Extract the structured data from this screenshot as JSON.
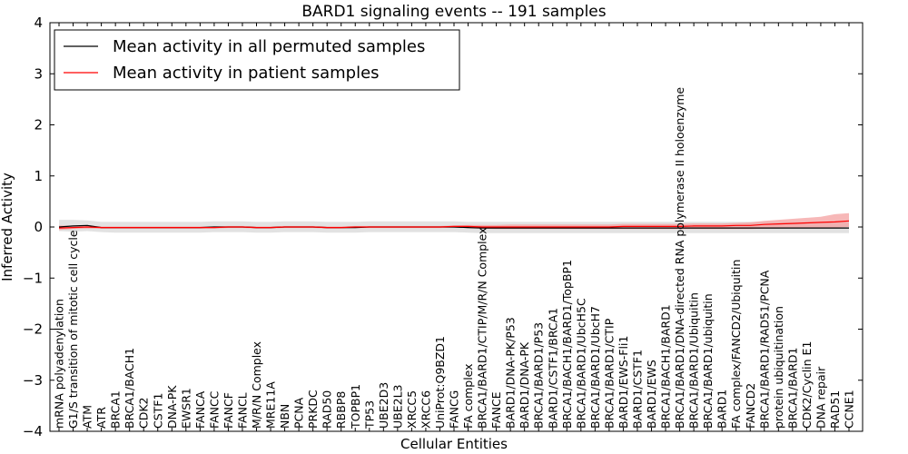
{
  "chart_data": {
    "type": "line",
    "title": "BARD1 signaling events -- 191 samples",
    "xlabel": "Cellular Entities",
    "ylabel": "Inferred Activity",
    "ylim": [
      -4,
      4
    ],
    "yticks": [
      -4,
      -3,
      -2,
      -1,
      0,
      1,
      2,
      3,
      4
    ],
    "yticklabels": [
      "−4",
      "−3",
      "−2",
      "−1",
      "0",
      "1",
      "2",
      "3",
      "4"
    ],
    "legend_position": "top-left",
    "categories": [
      "mRNA polyadenylation",
      "G1/S transition of mitotic cell cycle",
      "ATM",
      "ATR",
      "BRCA1",
      "BRCA1/BACH1",
      "CDK2",
      "CSTF1",
      "DNA-PK",
      "EWSR1",
      "FANCA",
      "FANCC",
      "FANCF",
      "FANCL",
      "M/R/N Complex",
      "MRE11A",
      "NBN",
      "PCNA",
      "PRKDC",
      "RAD50",
      "RBBP8",
      "TOPBP1",
      "TP53",
      "UBE2D3",
      "UBE2L3",
      "XRCC5",
      "XRCC6",
      "UniProt:Q9BZD1",
      "FANCG",
      "FA complex",
      "BRCA1/BARD1/CTIP/M/R/N Complex",
      "FANCE",
      "BARD1/DNA-PK/P53",
      "BARD1/DNA-PK",
      "BRCA1/BARD1/P53",
      "BARD1/CSTF1/BRCA1",
      "BRCA1/BACH1/BARD1/TopBP1",
      "BRCA1/BARD1/UbcH5C",
      "BRCA1/BARD1/UbcH7",
      "BRCA1/BARD1/CTIP",
      "BARD1/EWS-Fli1",
      "BARD1/CSTF1",
      "BARD1/EWS",
      "BRCA1/BACH1/BARD1",
      "BRCA1/BARD1/DNA-directed RNA polymerase II holoenzyme",
      "BRCA1/BARD1/Ubiquitin",
      "BRCA1/BARD1/ubiquitin",
      "BARD1",
      "FA complex/FANCD2/Ubiquitin",
      "FANCD2",
      "BRCA1/BARD1/RAD51/PCNA",
      "protein ubiquitination",
      "BRCA1/BARD1",
      "CDK2/Cyclin E1",
      "DNA repair",
      "RAD51",
      "CCNE1"
    ],
    "series": [
      {
        "name": "Mean activity in all permuted samples",
        "color": "#000000",
        "band_color": "#bfbfbf",
        "values": [
          0.0,
          0.02,
          0.03,
          -0.01,
          -0.01,
          -0.01,
          -0.01,
          -0.01,
          -0.01,
          -0.01,
          -0.01,
          0.0,
          0.0,
          0.0,
          -0.01,
          -0.01,
          0.0,
          0.0,
          0.0,
          -0.01,
          -0.01,
          -0.01,
          0.0,
          0.0,
          0.0,
          0.0,
          0.0,
          0.0,
          0.0,
          -0.01,
          -0.02,
          -0.02,
          -0.02,
          -0.02,
          -0.02,
          -0.02,
          -0.02,
          -0.02,
          -0.02,
          -0.02,
          -0.02,
          -0.02,
          -0.02,
          -0.02,
          -0.02,
          -0.02,
          -0.02,
          -0.02,
          -0.02,
          -0.02,
          -0.02,
          -0.02,
          -0.02,
          -0.02,
          -0.02,
          -0.02,
          -0.02
        ],
        "lower": [
          -0.08,
          -0.09,
          -0.08,
          -0.1,
          -0.11,
          -0.11,
          -0.11,
          -0.11,
          -0.11,
          -0.11,
          -0.11,
          -0.1,
          -0.1,
          -0.1,
          -0.11,
          -0.11,
          -0.1,
          -0.1,
          -0.1,
          -0.11,
          -0.11,
          -0.11,
          -0.1,
          -0.1,
          -0.1,
          -0.1,
          -0.1,
          -0.1,
          -0.1,
          -0.11,
          -0.12,
          -0.12,
          -0.12,
          -0.12,
          -0.12,
          -0.12,
          -0.12,
          -0.12,
          -0.12,
          -0.12,
          -0.12,
          -0.12,
          -0.12,
          -0.12,
          -0.12,
          -0.12,
          -0.12,
          -0.12,
          -0.12,
          -0.12,
          -0.12,
          -0.12,
          -0.12,
          -0.12,
          -0.12,
          -0.12,
          -0.12
        ],
        "upper": [
          0.14,
          0.14,
          0.13,
          0.1,
          0.1,
          0.1,
          0.1,
          0.1,
          0.1,
          0.1,
          0.1,
          0.11,
          0.11,
          0.11,
          0.1,
          0.1,
          0.11,
          0.11,
          0.11,
          0.1,
          0.1,
          0.1,
          0.11,
          0.11,
          0.11,
          0.11,
          0.11,
          0.11,
          0.11,
          0.1,
          0.1,
          0.1,
          0.1,
          0.1,
          0.1,
          0.1,
          0.1,
          0.1,
          0.1,
          0.1,
          0.1,
          0.1,
          0.1,
          0.1,
          0.1,
          0.1,
          0.1,
          0.1,
          0.1,
          0.1,
          0.1,
          0.1,
          0.1,
          0.1,
          0.1,
          0.1,
          0.1
        ]
      },
      {
        "name": "Mean activity in patient samples",
        "color": "#ff0000",
        "band_color": "#f4a0a0",
        "values": [
          -0.02,
          -0.01,
          0.0,
          -0.01,
          -0.01,
          -0.01,
          -0.01,
          -0.01,
          -0.01,
          -0.01,
          -0.01,
          -0.01,
          0.0,
          0.0,
          -0.01,
          -0.01,
          0.0,
          0.0,
          0.0,
          -0.01,
          -0.01,
          0.0,
          0.0,
          0.0,
          0.0,
          0.0,
          0.0,
          0.0,
          0.01,
          0.01,
          0.0,
          0.0,
          0.0,
          0.0,
          0.0,
          0.0,
          0.0,
          0.0,
          0.0,
          0.0,
          0.01,
          0.01,
          0.01,
          0.01,
          0.01,
          0.02,
          0.02,
          0.02,
          0.03,
          0.03,
          0.05,
          0.06,
          0.07,
          0.08,
          0.09,
          0.1,
          0.12
        ],
        "lower": [
          -0.06,
          -0.04,
          -0.03,
          -0.03,
          -0.03,
          -0.03,
          -0.03,
          -0.03,
          -0.03,
          -0.03,
          -0.03,
          -0.03,
          -0.02,
          -0.02,
          -0.03,
          -0.03,
          -0.02,
          -0.02,
          -0.02,
          -0.03,
          -0.03,
          -0.02,
          -0.02,
          -0.02,
          -0.02,
          -0.02,
          -0.02,
          -0.02,
          -0.01,
          -0.02,
          -0.03,
          -0.04,
          -0.04,
          -0.04,
          -0.04,
          -0.04,
          -0.04,
          -0.04,
          -0.04,
          -0.04,
          -0.04,
          -0.04,
          -0.04,
          -0.04,
          -0.04,
          -0.04,
          -0.04,
          -0.04,
          -0.04,
          -0.04,
          -0.03,
          -0.03,
          -0.02,
          -0.02,
          -0.02,
          -0.01,
          0.0
        ],
        "upper": [
          0.03,
          0.02,
          0.02,
          0.01,
          0.01,
          0.01,
          0.01,
          0.01,
          0.01,
          0.01,
          0.01,
          0.01,
          0.02,
          0.02,
          0.01,
          0.01,
          0.02,
          0.02,
          0.02,
          0.01,
          0.01,
          0.02,
          0.02,
          0.02,
          0.02,
          0.02,
          0.02,
          0.02,
          0.03,
          0.04,
          0.04,
          0.04,
          0.05,
          0.05,
          0.05,
          0.05,
          0.05,
          0.05,
          0.05,
          0.05,
          0.06,
          0.06,
          0.06,
          0.06,
          0.06,
          0.07,
          0.07,
          0.07,
          0.08,
          0.09,
          0.12,
          0.14,
          0.16,
          0.18,
          0.2,
          0.25,
          0.27
        ]
      }
    ]
  }
}
